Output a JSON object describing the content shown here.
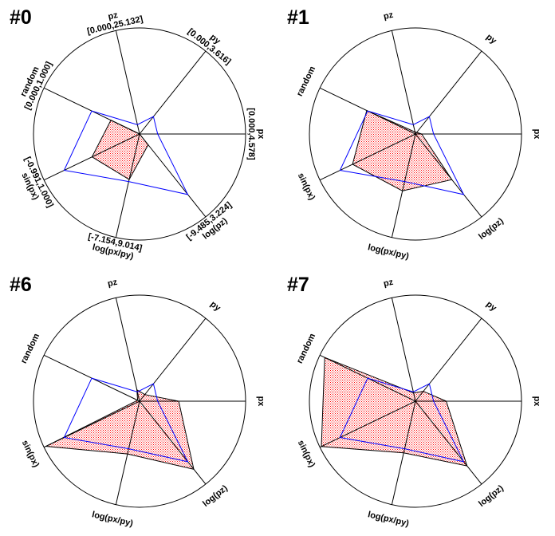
{
  "chart_data": {
    "type": "spider",
    "variables": [
      "px",
      "py",
      "pz",
      "random",
      "sin(px)",
      "log(px/py)",
      "log(pz)"
    ],
    "ranges": [
      [
        0.0,
        4.578
      ],
      [
        0.0,
        3.616
      ],
      [
        0.0,
        25.132
      ],
      [
        0.0,
        1.0
      ],
      [
        -0.991,
        1.0
      ],
      [
        -7.154,
        9.014
      ],
      [
        -9.485,
        3.224
      ]
    ],
    "range_labels": [
      "[0.000,4.578]",
      "[0.000,3.616]",
      "[0.000,25.132]",
      "[0.000,1.000]",
      "[-0.991,1.000]",
      "[-7.154,9.014]",
      "[-9.485,3.224]"
    ],
    "average": [
      0.78,
      0.76,
      2.26,
      0.5,
      0.58,
      0.28,
      -0.21
    ],
    "entries": [
      {
        "title": "#0",
        "values": [
          0.0,
          0.0,
          0.0,
          0.3,
          0.0,
          -0.04,
          -7.83
        ],
        "show_ranges": true
      },
      {
        "title": "#1",
        "values": [
          0.27,
          0.07,
          0.5,
          0.51,
          0.32,
          1.74,
          -2.49
        ],
        "show_ranges": false
      },
      {
        "title": "#6",
        "values": [
          1.69,
          0.29,
          2.76,
          0.02,
          0.96,
          1.09,
          0.94
        ],
        "show_ranges": false
      },
      {
        "title": "#7",
        "values": [
          1.33,
          0.43,
          2.01,
          0.95,
          0.97,
          0.93,
          0.43
        ],
        "show_ranges": false
      }
    ],
    "colors": {
      "fill_pattern": "#ff0000",
      "outline": "#000000",
      "average_line": "#0000ff",
      "axes": "#000000"
    }
  }
}
